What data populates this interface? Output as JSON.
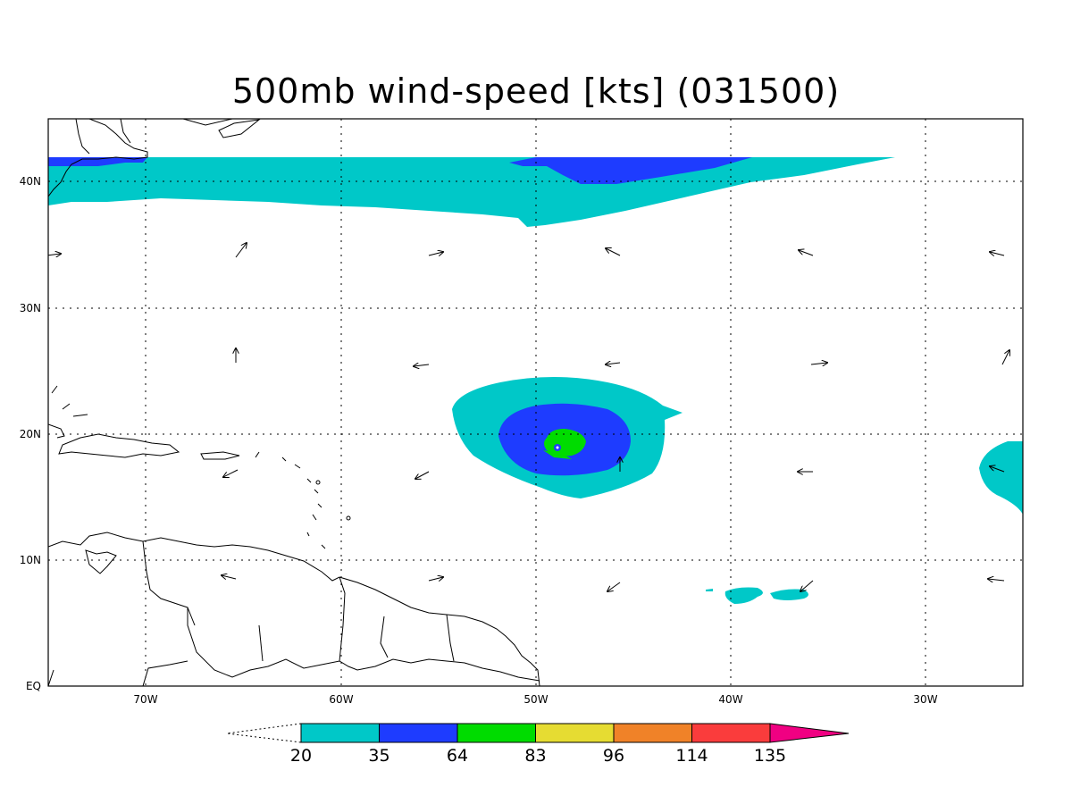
{
  "title": "500mb wind-speed [kts] (031500)",
  "axes": {
    "lat_labels": [
      "EQ",
      "10N",
      "20N",
      "30N",
      "40N"
    ],
    "lon_labels": [
      "70W",
      "60W",
      "50W",
      "40W",
      "30W"
    ]
  },
  "colorbar": {
    "thresholds": [
      "20",
      "35",
      "64",
      "83",
      "96",
      "114",
      "135"
    ],
    "colors": [
      "#00c8c8",
      "#1e3cff",
      "#00dc00",
      "#e6dc32",
      "#f08228",
      "#fa3c3c",
      "#f00082"
    ]
  },
  "wind_field": {
    "center_lon": -49,
    "center_lat": 19,
    "max_category_kts": "64-83"
  }
}
